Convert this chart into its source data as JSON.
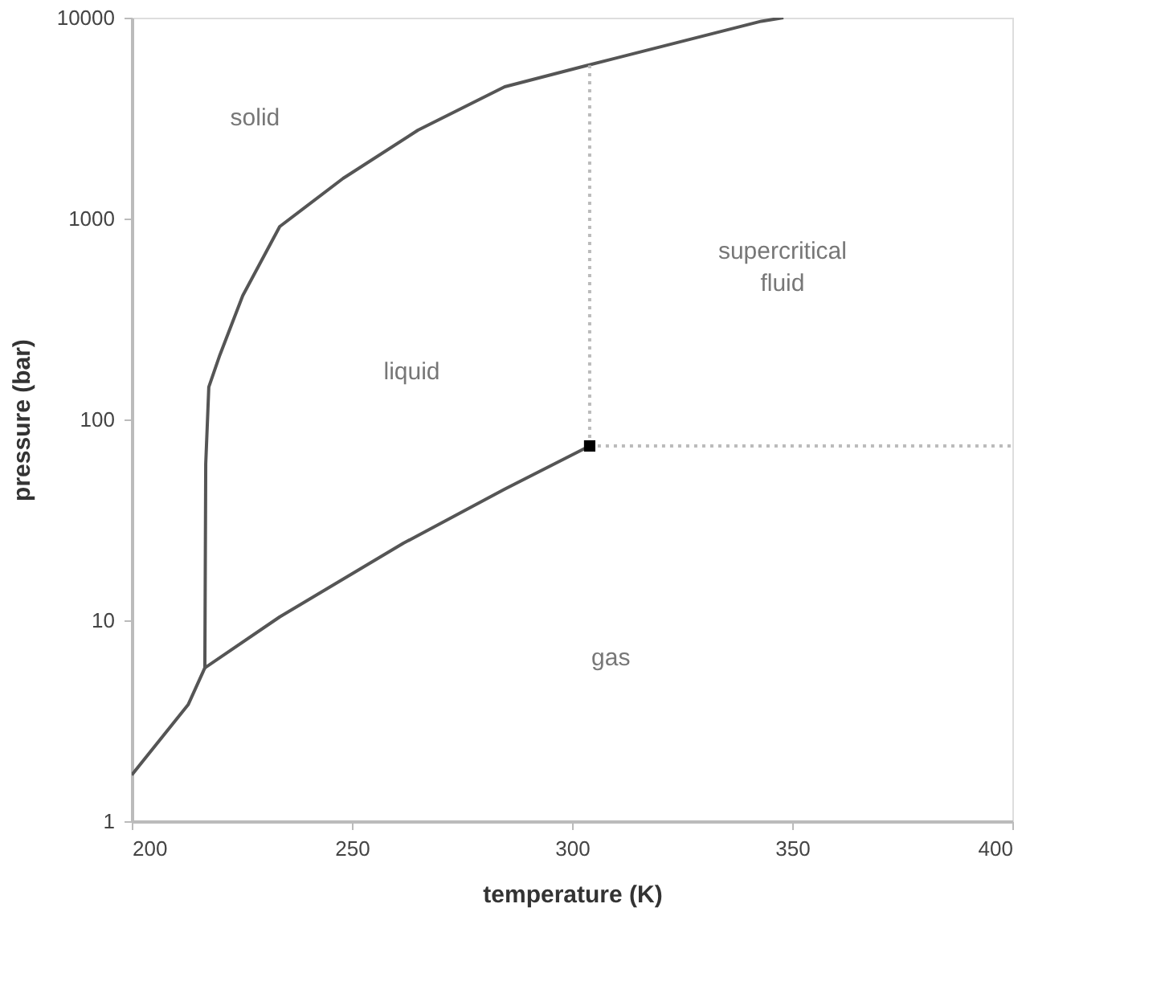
{
  "chart_data": {
    "type": "line",
    "xlabel": "temperature (K)",
    "ylabel": "pressure (bar)",
    "log": "y",
    "xlim": [
      200,
      400
    ],
    "xticks": [
      200,
      250,
      300,
      350,
      400
    ],
    "ylim": [
      1,
      10000
    ],
    "yticks": [
      1,
      10,
      100,
      1000,
      10000
    ],
    "grid": false,
    "marker": "none",
    "series": [
      {
        "color": "#555555",
        "line_style": "solid",
        "x": [
          216.6,
          233.6,
          261.7,
          284.7,
          304
        ],
        "values": [
          5.8,
          10.4,
          24.2,
          45,
          73.8
        ]
      },
      {
        "color": "#555555",
        "line_style": "solid",
        "x": [
          200,
          212.8,
          216.6,
          216.8,
          217.5,
          220,
          225.2,
          233.6,
          248,
          265,
          284.7,
          303,
          343,
          348
        ],
        "values": [
          1.7,
          3.8,
          5.8,
          60,
          145,
          209,
          413,
          912,
          1585,
          2754,
          4529,
          5754,
          9600,
          10000
        ]
      },
      {
        "color": "#bbbbbb",
        "line_style": "dotted",
        "x": [
          304,
          304
        ],
        "values": [
          73.8,
          5800
        ]
      },
      {
        "color": "#bbbbbb",
        "line_style": "dotted",
        "x": [
          304,
          400
        ],
        "values": [
          73.8,
          73.8
        ]
      },
      {
        "type": "scatter",
        "marker": "square",
        "color": "#000000",
        "x": [
          304
        ],
        "values": [
          73.8
        ]
      }
    ],
    "annotations": [
      "solid",
      "liquid",
      "supercritical fluid",
      "gas"
    ]
  }
}
